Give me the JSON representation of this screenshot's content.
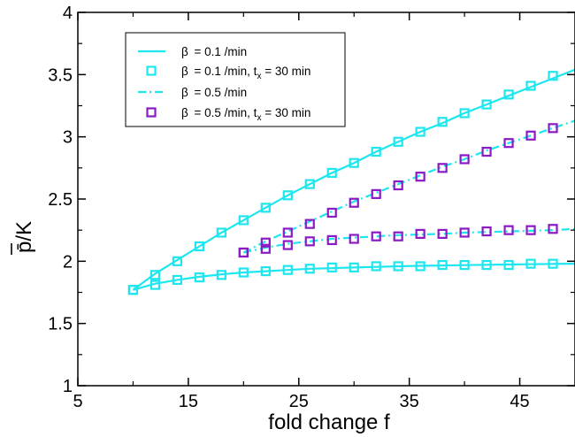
{
  "chart_data": {
    "type": "line",
    "title": "",
    "xlabel": "fold change f",
    "ylabel": "p̄/K",
    "xlim": [
      5,
      50
    ],
    "ylim": [
      1,
      4
    ],
    "xticks": [
      5,
      15,
      25,
      35,
      45
    ],
    "xtick_labels": [
      "5",
      "15",
      "25",
      "35",
      "45"
    ],
    "yticks": [
      1,
      1.5,
      2,
      2.5,
      3,
      3.5,
      4
    ],
    "ytick_labels": [
      "1",
      "1.5",
      "2",
      "2.5",
      "3",
      "3.5",
      "4"
    ],
    "grid": false,
    "legend_position": "top-left",
    "colors": {
      "cyan": "#1ee6ee",
      "purple": "#8b19c4",
      "axis": "#000000"
    },
    "legend": [
      {
        "series": 0,
        "prefix": "β",
        "text": " = 0.1 /min"
      },
      {
        "series": 1,
        "prefix": "β",
        "text": " = 0.1 /min, t",
        "sub": "x",
        "suffix": " = 30 min"
      },
      {
        "series": 2,
        "prefix": "β",
        "text": " = 0.5 /min"
      },
      {
        "series": 3,
        "prefix": "β",
        "text": " = 0.5 /min, t",
        "sub": "x",
        "suffix": " = 30 min"
      }
    ],
    "series": [
      {
        "name": "β = 0.1 /min",
        "style": "solid-line",
        "color": "#1ee6ee",
        "curves": [
          {
            "x": [
              10,
              12,
              14,
              16,
              18,
              20,
              22,
              24,
              26,
              28,
              30,
              32,
              34,
              36,
              38,
              40,
              42,
              44,
              46,
              48,
              50
            ],
            "y": [
              1.77,
              1.9,
              2.01,
              2.12,
              2.23,
              2.33,
              2.43,
              2.53,
              2.62,
              2.71,
              2.79,
              2.88,
              2.96,
              3.04,
              3.11,
              3.19,
              3.26,
              3.33,
              3.4,
              3.47,
              3.54
            ]
          },
          {
            "x": [
              10,
              12,
              14,
              16,
              18,
              20,
              22,
              24,
              26,
              28,
              30,
              32,
              34,
              36,
              38,
              40,
              42,
              44,
              46,
              48,
              50
            ],
            "y": [
              1.77,
              1.82,
              1.85,
              1.875,
              1.895,
              1.91,
              1.92,
              1.93,
              1.94,
              1.945,
              1.95,
              1.955,
              1.96,
              1.963,
              1.966,
              1.969,
              1.972,
              1.974,
              1.976,
              1.978,
              1.98
            ]
          }
        ]
      },
      {
        "name": "β = 0.1 /min, tx = 30 min",
        "style": "square-markers",
        "color": "#1ee6ee",
        "curves": [
          {
            "x": [
              10,
              12,
              14,
              16,
              18,
              20,
              22,
              24,
              26,
              28,
              30,
              32,
              34,
              36,
              38,
              40,
              42,
              44,
              46,
              48
            ],
            "y": [
              1.77,
              1.89,
              2.0,
              2.12,
              2.23,
              2.33,
              2.43,
              2.53,
              2.62,
              2.71,
              2.79,
              2.88,
              2.96,
              3.04,
              3.12,
              3.19,
              3.26,
              3.34,
              3.41,
              3.49
            ]
          },
          {
            "x": [
              10,
              12,
              14,
              16,
              18,
              20,
              22,
              24,
              26,
              28,
              30,
              32,
              34,
              36,
              38,
              40,
              42,
              44,
              46,
              48
            ],
            "y": [
              1.77,
              1.81,
              1.85,
              1.87,
              1.89,
              1.91,
              1.92,
              1.93,
              1.94,
              1.95,
              1.95,
              1.96,
              1.96,
              1.96,
              1.97,
              1.97,
              1.97,
              1.97,
              1.98,
              1.98
            ]
          }
        ]
      },
      {
        "name": "β = 0.5 /min",
        "style": "dash-dot-line",
        "color": "#1ee6ee",
        "curves": [
          {
            "x": [
              20,
              22,
              24,
              26,
              28,
              30,
              32,
              34,
              36,
              38,
              40,
              42,
              44,
              46,
              48,
              50
            ],
            "y": [
              2.07,
              2.16,
              2.24,
              2.32,
              2.4,
              2.48,
              2.55,
              2.62,
              2.69,
              2.76,
              2.82,
              2.89,
              2.95,
              3.01,
              3.07,
              3.13
            ]
          },
          {
            "x": [
              20,
              22,
              24,
              26,
              28,
              30,
              32,
              34,
              36,
              38,
              40,
              42,
              44,
              46,
              48,
              50
            ],
            "y": [
              2.07,
              2.11,
              2.14,
              2.16,
              2.18,
              2.19,
              2.2,
              2.21,
              2.215,
              2.22,
              2.23,
              2.235,
              2.24,
              2.245,
              2.25,
              2.26
            ]
          }
        ]
      },
      {
        "name": "β = 0.5 /min, tx = 30 min",
        "style": "square-markers",
        "color": "#8b19c4",
        "curves": [
          {
            "x": [
              20,
              22,
              24,
              26,
              28,
              30,
              32,
              34,
              36,
              38,
              40,
              42,
              44,
              46,
              48
            ],
            "y": [
              2.07,
              2.15,
              2.23,
              2.3,
              2.39,
              2.47,
              2.54,
              2.61,
              2.68,
              2.75,
              2.82,
              2.88,
              2.95,
              3.01,
              3.07
            ]
          },
          {
            "x": [
              20,
              22,
              24,
              26,
              28,
              30,
              32,
              34,
              36,
              38,
              40,
              42,
              44,
              46,
              48
            ],
            "y": [
              2.07,
              2.1,
              2.13,
              2.16,
              2.17,
              2.18,
              2.2,
              2.2,
              2.22,
              2.22,
              2.23,
              2.24,
              2.25,
              2.25,
              2.26
            ]
          }
        ]
      }
    ]
  }
}
